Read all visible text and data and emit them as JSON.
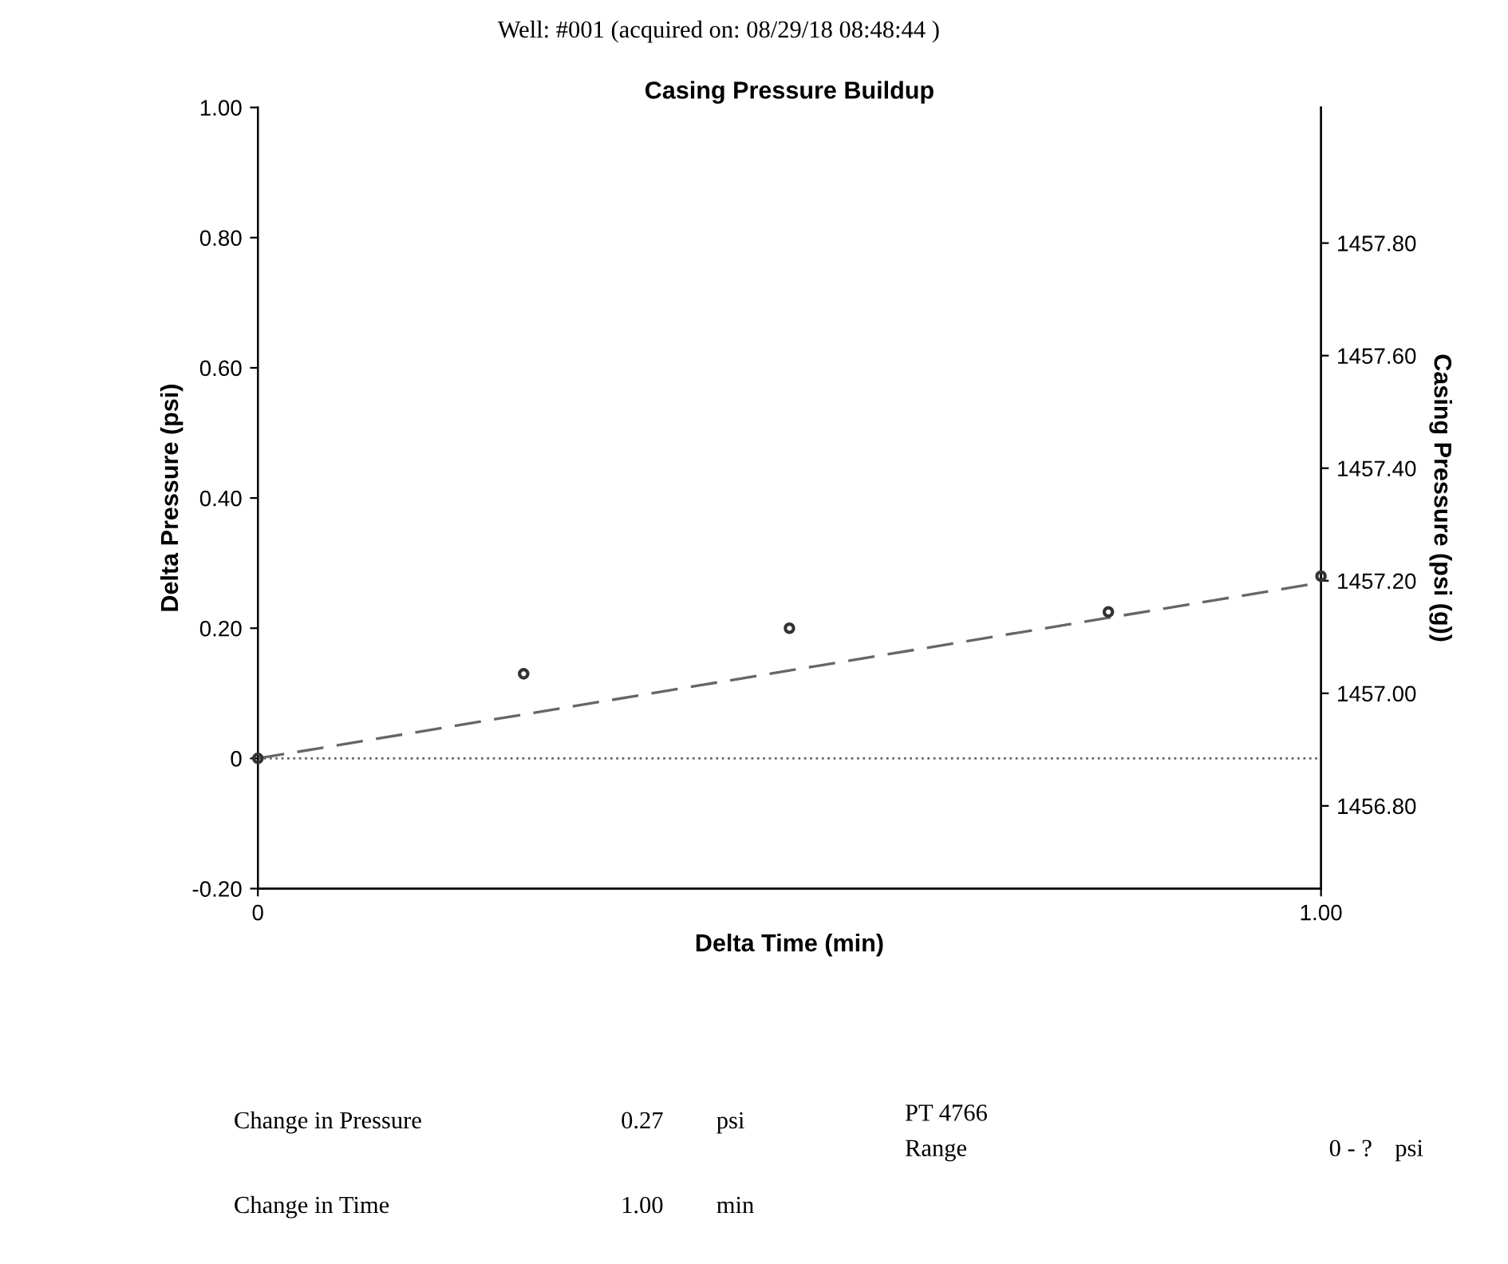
{
  "chart_data": {
    "type": "scatter",
    "title": "Casing Pressure Buildup",
    "subtitle": "Well: #001 (acquired on: 08/29/18 08:48:44 )",
    "xlabel": "Delta Time (min)",
    "ylabel": "Delta Pressure (psi)",
    "y2label": "Casing Pressure (psi (g))",
    "series": [
      {
        "color": "#333333",
        "marker": "circle",
        "x": [
          0,
          0.25,
          0.5,
          0.8,
          1.0
        ],
        "values": [
          0,
          0.13,
          0.2,
          0.225,
          0.28
        ]
      },
      {
        "type": "line",
        "color": "#666666",
        "line_style": "dashed",
        "marker": "none",
        "x": [
          0,
          1.0
        ],
        "values": [
          0,
          0.27
        ]
      }
    ],
    "ref_lines": [
      {
        "axis": "y",
        "value": 0,
        "line_style": "dotted",
        "color": "#666666"
      }
    ],
    "xlim": [
      0,
      1.0
    ],
    "xticks": [
      0,
      {
        "value": 1.0,
        "label": "1.00"
      }
    ],
    "ylim": [
      -0.2,
      1.0
    ],
    "yticks": [
      {
        "value": -0.2,
        "label": "-0.20"
      },
      0,
      {
        "value": 0.2,
        "label": "0.20"
      },
      {
        "value": 0.4,
        "label": "0.40"
      },
      {
        "value": 0.6,
        "label": "0.60"
      },
      {
        "value": 0.8,
        "label": "0.80"
      },
      {
        "value": 1.0,
        "label": "1.00"
      }
    ],
    "y2lim": [
      1456.653,
      1458.041
    ],
    "y2ticks": [
      {
        "value": 1456.8,
        "label": "1456.80"
      },
      {
        "value": 1457.0,
        "label": "1457.00"
      },
      {
        "value": 1457.2,
        "label": "1457.20"
      },
      {
        "value": 1457.4,
        "label": "1457.40"
      },
      {
        "value": 1457.6,
        "label": "1457.60"
      },
      {
        "value": 1457.8,
        "label": "1457.80"
      }
    ],
    "grid": false,
    "legend": false,
    "annotations": [
      "Change in Pressure",
      "0.27",
      "psi",
      "Change in Time",
      "1.00",
      "min",
      "PT 4766",
      "Range",
      "0 - ?",
      "psi"
    ]
  }
}
